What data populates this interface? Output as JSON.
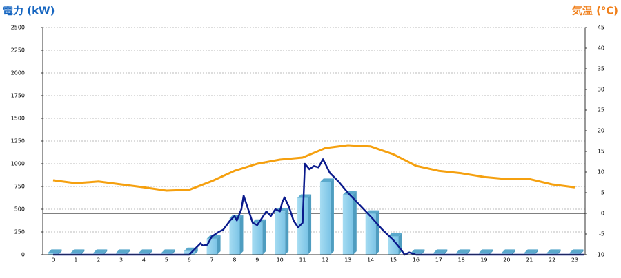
{
  "chart_data": {
    "type": "combo",
    "y_label": "電力 (kW)",
    "y2_label": "気温 (℃)",
    "categories": [
      0,
      1,
      2,
      3,
      4,
      5,
      6,
      7,
      8,
      9,
      10,
      11,
      12,
      13,
      14,
      15,
      16,
      17,
      18,
      19,
      20,
      21,
      22,
      23
    ],
    "ylim": [
      0,
      2500
    ],
    "yticks": [
      0,
      250,
      500,
      750,
      1000,
      1250,
      1500,
      1750,
      2000,
      2250,
      2500
    ],
    "y2lim": [
      -10,
      45
    ],
    "y2ticks": [
      -10,
      -5,
      0,
      5,
      10,
      15,
      20,
      25,
      30,
      35,
      40,
      45
    ],
    "grid": true,
    "hline": {
      "axis": "y2",
      "value": 0,
      "color": "#000000"
    },
    "series": [
      {
        "type": "bar",
        "color": "#87ceeb",
        "values": [
          20,
          20,
          20,
          20,
          20,
          20,
          40,
          175,
          400,
          350,
          475,
          625,
          800,
          660,
          450,
          200,
          20,
          20,
          20,
          20,
          20,
          20,
          20,
          20
        ]
      },
      {
        "type": "line",
        "color": "#0a1a8c",
        "x": [
          0,
          6,
          6.3,
          6.5,
          6.6,
          6.8,
          7,
          7.3,
          7.5,
          7.8,
          8,
          8.1,
          8.3,
          8.4,
          8.6,
          8.8,
          9,
          9.2,
          9.4,
          9.5,
          9.6,
          9.8,
          10,
          10.1,
          10.2,
          10.4,
          10.6,
          10.8,
          11,
          11.1,
          11.3,
          11.5,
          11.7,
          11.9,
          12,
          12.2,
          12.6,
          13,
          13.5,
          14,
          14.5,
          15,
          15.2,
          15.5,
          15.7,
          16,
          23.4
        ],
        "values": [
          0,
          0,
          75,
          125,
          100,
          110,
          200,
          250,
          275,
          375,
          425,
          375,
          500,
          650,
          500,
          350,
          325,
          400,
          475,
          450,
          425,
          500,
          475,
          575,
          630,
          525,
          375,
          300,
          350,
          1000,
          940,
          975,
          960,
          1050,
          1000,
          900,
          800,
          680,
          550,
          420,
          280,
          160,
          100,
          0,
          25,
          0,
          0
        ]
      },
      {
        "type": "line",
        "axis": "y2",
        "color": "#f5a00f",
        "values": [
          8,
          7.3,
          7.7,
          7,
          6.3,
          5.5,
          5.7,
          7.8,
          10.3,
          12,
          13,
          13.5,
          15.8,
          16.5,
          16.2,
          14.3,
          11.5,
          10.3,
          9.7,
          8.8,
          8.3,
          8.3,
          7,
          6.3
        ]
      }
    ]
  }
}
